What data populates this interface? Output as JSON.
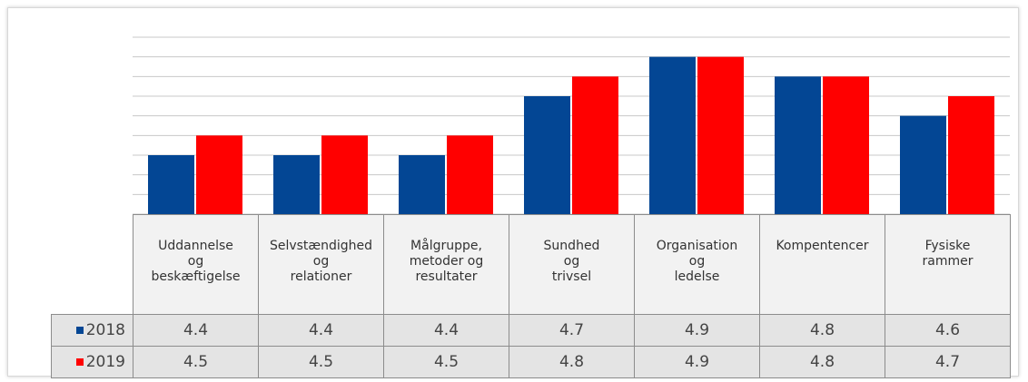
{
  "chart_data": {
    "type": "bar",
    "categories": [
      "Uddannelse\nog\nbeskæftigelse",
      "Selvstændighed\nog\nrelationer",
      "Målgruppe,\nmetoder og\nresultater",
      "Sundhed\nog\ntrivsel",
      "Organisation\nog\nledelse",
      "Kompentencer",
      "Fysiske\nrammer"
    ],
    "series": [
      {
        "name": "2018",
        "color": "#034694",
        "values": [
          4.4,
          4.4,
          4.4,
          4.7,
          4.9,
          4.8,
          4.6
        ]
      },
      {
        "name": "2019",
        "color": "#ff0000",
        "values": [
          4.5,
          4.5,
          4.5,
          4.8,
          4.9,
          4.8,
          4.7
        ]
      }
    ],
    "ylim": [
      4.1,
      5.0
    ],
    "yticks": [
      4.1,
      4.2,
      4.3,
      4.4,
      4.5,
      4.6,
      4.7,
      4.8,
      4.9,
      5.0
    ],
    "grid": true
  }
}
